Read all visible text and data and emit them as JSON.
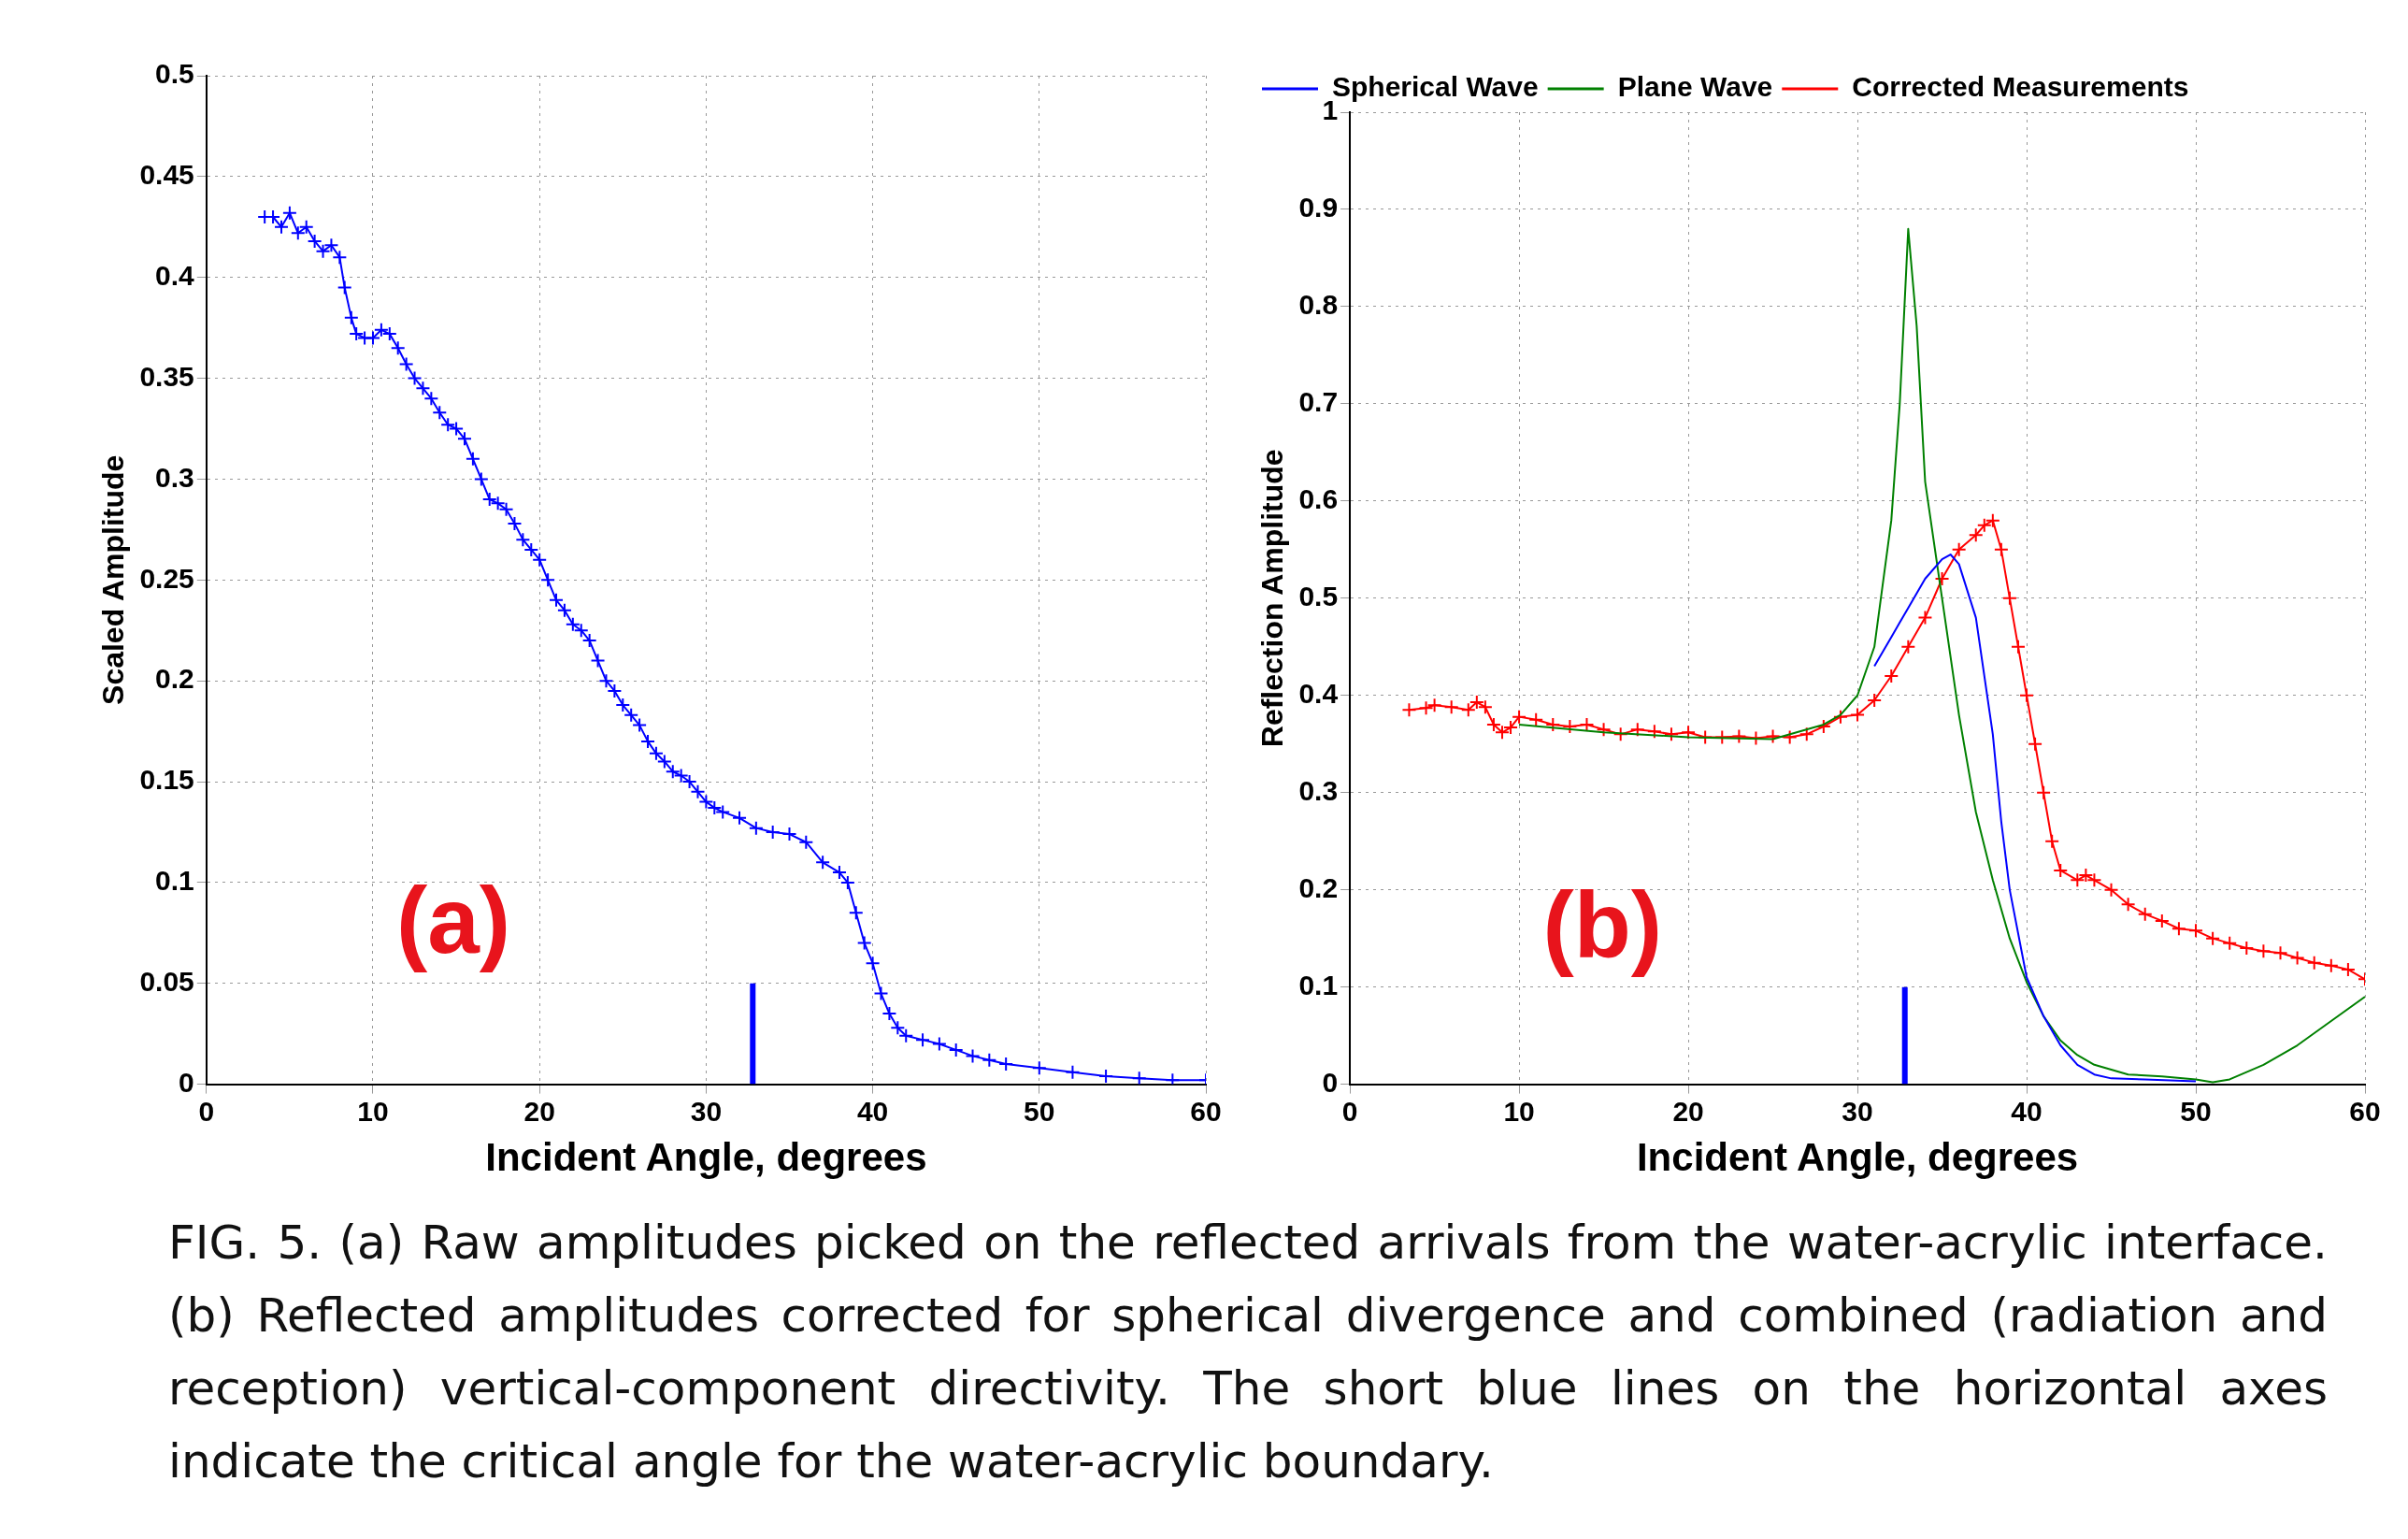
{
  "chart_data": [
    {
      "type": "line",
      "xlabel": "Incident Angle, degrees",
      "ylabel": "Scaled Amplitude",
      "xlim": [
        0,
        60
      ],
      "xticks": [
        0,
        10,
        20,
        30,
        40,
        50,
        60
      ],
      "ylim": [
        0,
        0.5
      ],
      "yticks": [
        0,
        0.05,
        0.1,
        0.15,
        0.2,
        0.25,
        0.3,
        0.35,
        0.4,
        0.45,
        0.5
      ],
      "grid": true,
      "marker": "cross",
      "line_style": "solid",
      "annotations": [
        "(a)",
        "FIG. 5.  (a) Raw amplitudes picked on the reflected arrivals from the water-acrylic interface.  (b) Reflected amplitudes corrected for spherical divergence and combined (radiation and reception) vertical-component directivity.  The short blue lines on the horizontal axes indicate the critical angle for the water-acrylic boundary."
      ],
      "series": [
        {
          "type": "line",
          "color": "#0000ff",
          "x": [
            3.5,
            4,
            4.5,
            5,
            5.5,
            6,
            6.5,
            7,
            7.5,
            8,
            8.3,
            8.7,
            9,
            9.5,
            10,
            10.5,
            11,
            11.5,
            12,
            12.5,
            13,
            13.5,
            14,
            14.5,
            15,
            15.5,
            16,
            16.5,
            17,
            17.5,
            18,
            18.5,
            19,
            19.5,
            20,
            20.5,
            21,
            21.5,
            22,
            22.5,
            23,
            23.5,
            24,
            24.5,
            25,
            25.5,
            26,
            26.5,
            27,
            27.5,
            28,
            28.5,
            29,
            29.5,
            30,
            30.5,
            31,
            32,
            33,
            34,
            35,
            36,
            37,
            38,
            38.5,
            39,
            39.5,
            40,
            40.5,
            41,
            41.5,
            42,
            43,
            44,
            45,
            46,
            47,
            48,
            50,
            52,
            54,
            56,
            58,
            60
          ],
          "values": [
            0.43,
            0.43,
            0.425,
            0.432,
            0.422,
            0.425,
            0.418,
            0.413,
            0.416,
            0.41,
            0.395,
            0.38,
            0.372,
            0.37,
            0.37,
            0.374,
            0.372,
            0.365,
            0.357,
            0.35,
            0.345,
            0.34,
            0.333,
            0.327,
            0.325,
            0.32,
            0.31,
            0.3,
            0.29,
            0.288,
            0.285,
            0.278,
            0.27,
            0.265,
            0.26,
            0.25,
            0.24,
            0.235,
            0.228,
            0.225,
            0.22,
            0.21,
            0.2,
            0.195,
            0.188,
            0.183,
            0.178,
            0.17,
            0.164,
            0.16,
            0.155,
            0.153,
            0.15,
            0.145,
            0.14,
            0.137,
            0.135,
            0.132,
            0.127,
            0.125,
            0.124,
            0.12,
            0.11,
            0.105,
            0.1,
            0.085,
            0.07,
            0.06,
            0.045,
            0.035,
            0.028,
            0.024,
            0.022,
            0.02,
            0.017,
            0.014,
            0.012,
            0.01,
            0.008,
            0.006,
            0.004,
            0.003,
            0.002,
            0.002
          ]
        },
        {
          "type": "line",
          "color": "#0000ff",
          "marker": "none",
          "x": [
            32.8,
            32.8
          ],
          "values": [
            0,
            0.05
          ]
        }
      ]
    },
    {
      "type": "line",
      "xlabel": "Incident Angle, degrees",
      "ylabel": "Reflection Amplitude",
      "xlim": [
        0,
        60
      ],
      "xticks": [
        0,
        10,
        20,
        30,
        40,
        50,
        60
      ],
      "ylim": [
        0,
        1
      ],
      "yticks": [
        0,
        0.1,
        0.2,
        0.3,
        0.4,
        0.5,
        0.6,
        0.7,
        0.8,
        0.9,
        1
      ],
      "grid": true,
      "marker": "none",
      "line_style": "solid",
      "legend": "top left",
      "annotations": [
        "(b)"
      ],
      "series": [
        {
          "type": "line",
          "name": "Spherical Wave",
          "color": "#0000ff",
          "x": [
            31,
            32,
            33,
            34,
            35,
            35.5,
            36,
            37,
            38,
            38.5,
            39,
            40,
            41,
            42,
            43,
            44,
            45,
            47,
            50
          ],
          "values": [
            0.43,
            0.46,
            0.49,
            0.52,
            0.54,
            0.545,
            0.535,
            0.48,
            0.36,
            0.27,
            0.2,
            0.11,
            0.07,
            0.04,
            0.02,
            0.01,
            0.006,
            0.005,
            0.003
          ]
        },
        {
          "type": "line",
          "name": "Plane Wave",
          "color": "#008000",
          "x": [
            10,
            15,
            20,
            25,
            28,
            29,
            30,
            31,
            32,
            32.5,
            33,
            33.5,
            34,
            35,
            36,
            37,
            38,
            39,
            40,
            41,
            42,
            43,
            44,
            45,
            46,
            48,
            50,
            51,
            52,
            54,
            56,
            58,
            60
          ],
          "values": [
            0.37,
            0.362,
            0.357,
            0.355,
            0.37,
            0.38,
            0.4,
            0.45,
            0.58,
            0.7,
            0.88,
            0.78,
            0.62,
            0.5,
            0.38,
            0.28,
            0.21,
            0.15,
            0.105,
            0.07,
            0.045,
            0.03,
            0.02,
            0.015,
            0.01,
            0.008,
            0.005,
            0.002,
            0.005,
            0.02,
            0.04,
            0.065,
            0.09
          ]
        },
        {
          "type": "line",
          "name": "Corrected Measurements",
          "color": "#ff0000",
          "marker": "cross",
          "x": [
            3.5,
            4.5,
            5,
            6,
            7,
            7.5,
            8,
            8.5,
            9,
            9.5,
            10,
            11,
            12,
            13,
            14,
            15,
            16,
            17,
            18,
            19,
            20,
            21,
            22,
            23,
            24,
            25,
            26,
            27,
            28,
            29,
            30,
            31,
            32,
            33,
            34,
            35,
            36,
            37,
            37.5,
            38,
            38.5,
            39,
            39.5,
            40,
            40.5,
            41,
            41.5,
            42,
            43,
            43.5,
            44,
            45,
            46,
            47,
            48,
            49,
            50,
            51,
            52,
            53,
            54,
            55,
            56,
            57,
            58,
            59,
            60
          ],
          "values": [
            0.385,
            0.387,
            0.39,
            0.388,
            0.385,
            0.393,
            0.388,
            0.37,
            0.362,
            0.367,
            0.378,
            0.375,
            0.37,
            0.368,
            0.37,
            0.365,
            0.36,
            0.365,
            0.363,
            0.36,
            0.362,
            0.357,
            0.357,
            0.358,
            0.356,
            0.358,
            0.357,
            0.36,
            0.368,
            0.378,
            0.38,
            0.395,
            0.42,
            0.45,
            0.48,
            0.52,
            0.55,
            0.565,
            0.575,
            0.58,
            0.55,
            0.5,
            0.45,
            0.4,
            0.35,
            0.3,
            0.25,
            0.22,
            0.21,
            0.215,
            0.21,
            0.2,
            0.185,
            0.175,
            0.168,
            0.16,
            0.158,
            0.15,
            0.145,
            0.14,
            0.137,
            0.135,
            0.13,
            0.125,
            0.122,
            0.118,
            0.108
          ]
        },
        {
          "type": "line",
          "color": "#0000ff",
          "marker": "none",
          "x": [
            32.8,
            32.8
          ],
          "values": [
            0,
            0.1
          ]
        }
      ]
    }
  ]
}
